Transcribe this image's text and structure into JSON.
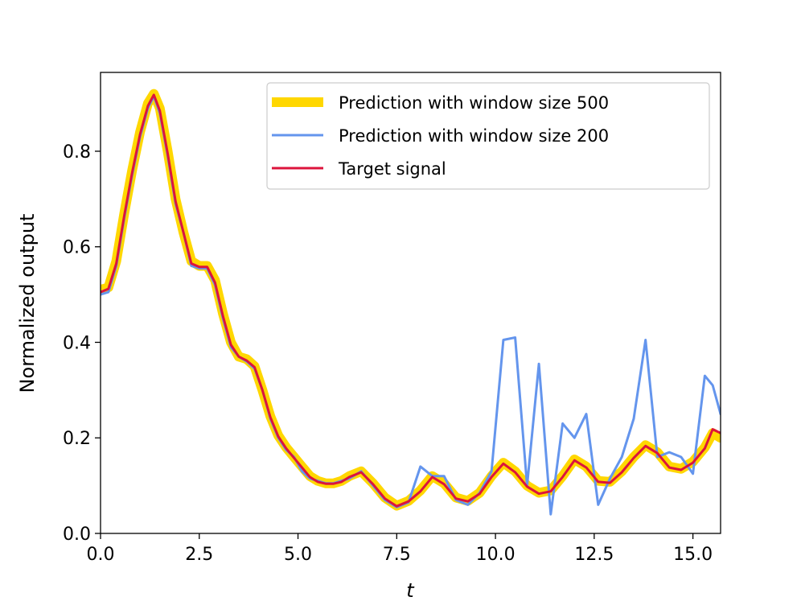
{
  "chart_data": {
    "type": "line",
    "title": "",
    "xlabel": "t",
    "ylabel": "Normalized output",
    "xlim": [
      0,
      15.7
    ],
    "ylim": [
      0,
      0.965
    ],
    "xticks": [
      0.0,
      2.5,
      5.0,
      7.5,
      10.0,
      12.5,
      15.0
    ],
    "xtick_labels": [
      "0.0",
      "2.5",
      "5.0",
      "7.5",
      "10.0",
      "12.5",
      "15.0"
    ],
    "yticks": [
      0.0,
      0.2,
      0.4,
      0.6,
      0.8
    ],
    "ytick_labels": [
      "0.0",
      "0.2",
      "0.4",
      "0.6",
      "0.8"
    ],
    "grid": false,
    "legend_position": "upper-right",
    "x": [
      0.0,
      0.2,
      0.4,
      0.6,
      0.8,
      1.0,
      1.2,
      1.35,
      1.5,
      1.7,
      1.9,
      2.1,
      2.3,
      2.5,
      2.7,
      2.9,
      3.1,
      3.3,
      3.5,
      3.7,
      3.9,
      4.1,
      4.3,
      4.5,
      4.7,
      4.9,
      5.1,
      5.3,
      5.5,
      5.7,
      5.9,
      6.1,
      6.3,
      6.6,
      6.9,
      7.2,
      7.5,
      7.8,
      8.1,
      8.4,
      8.7,
      9.0,
      9.3,
      9.6,
      9.9,
      10.2,
      10.5,
      10.8,
      11.1,
      11.4,
      11.7,
      12.0,
      12.3,
      12.6,
      12.9,
      13.2,
      13.5,
      13.8,
      14.1,
      14.4,
      14.7,
      15.0,
      15.3,
      15.5,
      15.7
    ],
    "series": [
      {
        "name": "Prediction with window size 500",
        "color": "#ffd700",
        "linewidth": 12,
        "values": [
          0.51,
          0.515,
          0.57,
          0.67,
          0.76,
          0.84,
          0.9,
          0.92,
          0.89,
          0.8,
          0.7,
          0.63,
          0.57,
          0.56,
          0.56,
          0.53,
          0.46,
          0.4,
          0.37,
          0.365,
          0.35,
          0.3,
          0.245,
          0.205,
          0.18,
          0.16,
          0.14,
          0.12,
          0.11,
          0.105,
          0.105,
          0.11,
          0.12,
          0.13,
          0.105,
          0.075,
          0.058,
          0.068,
          0.09,
          0.12,
          0.105,
          0.075,
          0.068,
          0.085,
          0.12,
          0.148,
          0.13,
          0.1,
          0.085,
          0.09,
          0.12,
          0.155,
          0.14,
          0.11,
          0.108,
          0.13,
          0.16,
          0.185,
          0.17,
          0.14,
          0.135,
          0.15,
          0.18,
          0.21,
          0.2
        ]
      },
      {
        "name": "Prediction with window size 200",
        "color": "#6495ed",
        "linewidth": 3,
        "values": [
          0.5,
          0.505,
          0.56,
          0.66,
          0.75,
          0.83,
          0.89,
          0.915,
          0.88,
          0.79,
          0.69,
          0.63,
          0.56,
          0.555,
          0.555,
          0.52,
          0.45,
          0.39,
          0.37,
          0.36,
          0.345,
          0.3,
          0.24,
          0.2,
          0.175,
          0.16,
          0.13,
          0.115,
          0.11,
          0.105,
          0.105,
          0.11,
          0.115,
          0.13,
          0.1,
          0.07,
          0.055,
          0.065,
          0.14,
          0.12,
          0.12,
          0.07,
          0.06,
          0.085,
          0.13,
          0.405,
          0.41,
          0.1,
          0.355,
          0.04,
          0.23,
          0.2,
          0.25,
          0.06,
          0.115,
          0.16,
          0.24,
          0.405,
          0.16,
          0.17,
          0.16,
          0.125,
          0.33,
          0.31,
          0.25
        ]
      },
      {
        "name": "Target signal",
        "color": "#dc143c",
        "linewidth": 3,
        "values": [
          0.505,
          0.512,
          0.565,
          0.665,
          0.755,
          0.835,
          0.895,
          0.918,
          0.885,
          0.795,
          0.695,
          0.63,
          0.565,
          0.558,
          0.558,
          0.525,
          0.455,
          0.395,
          0.37,
          0.362,
          0.348,
          0.3,
          0.243,
          0.203,
          0.178,
          0.158,
          0.138,
          0.118,
          0.108,
          0.104,
          0.104,
          0.108,
          0.118,
          0.128,
          0.103,
          0.073,
          0.057,
          0.067,
          0.088,
          0.118,
          0.103,
          0.073,
          0.067,
          0.083,
          0.118,
          0.146,
          0.128,
          0.098,
          0.083,
          0.088,
          0.118,
          0.153,
          0.138,
          0.108,
          0.106,
          0.128,
          0.158,
          0.183,
          0.168,
          0.138,
          0.133,
          0.148,
          0.178,
          0.218,
          0.21
        ]
      }
    ]
  }
}
